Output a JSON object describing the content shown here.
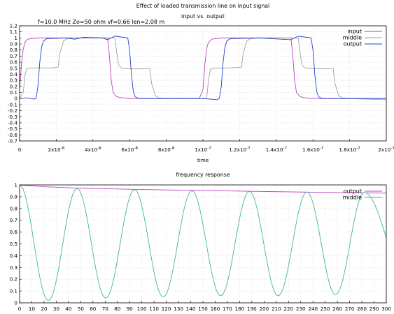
{
  "figure": {
    "title": "Effect of loaded transmission line on input signal",
    "annotation": "f=10.0 MHz   Zo=50 ohm  vf=0.66 len=2.08 m"
  },
  "chart_data": [
    {
      "type": "line",
      "title": "input vs. output",
      "xlabel": "time",
      "ylabel": "",
      "xlim": [
        0,
        2e-07
      ],
      "ylim": [
        -0.7,
        1.2
      ],
      "x_ticks": [
        {
          "v": 0,
          "label": "0"
        },
        {
          "v": 2e-08,
          "label": "2x10-8"
        },
        {
          "v": 4e-08,
          "label": "4x10-8"
        },
        {
          "v": 6e-08,
          "label": "6x10-8"
        },
        {
          "v": 8e-08,
          "label": "8x10-8"
        },
        {
          "v": 1e-07,
          "label": "1x10-7"
        },
        {
          "v": 1.2e-07,
          "label": "1.2x10-7"
        },
        {
          "v": 1.4e-07,
          "label": "1.4x10-7"
        },
        {
          "v": 1.6e-07,
          "label": "1.6x10-7"
        },
        {
          "v": 1.8e-07,
          "label": "1.8x10-7"
        },
        {
          "v": 2e-07,
          "label": "2x10-7"
        }
      ],
      "y_ticks": [
        "1.2",
        "1.1",
        "1",
        "0.9",
        "0.8",
        "0.7",
        "0.6",
        "0.5",
        "0.4",
        "0.3",
        "0.2",
        "0.1",
        "0",
        "-0.1",
        "-0.2",
        "-0.3",
        "-0.4",
        "-0.5",
        "-0.6",
        "-0.7"
      ],
      "grid": true,
      "legend_position": "top-right",
      "series": [
        {
          "name": "input",
          "color": "#c040c0",
          "points": [
            [
              0,
              0.15
            ],
            [
              1e-09,
              0.55
            ],
            [
              2e-09,
              0.82
            ],
            [
              3e-09,
              0.93
            ],
            [
              4e-09,
              0.97
            ],
            [
              6e-09,
              0.99
            ],
            [
              1e-08,
              1.0
            ],
            [
              4.8e-08,
              1.0
            ],
            [
              4.9e-08,
              0.7
            ],
            [
              5e-08,
              0.3
            ],
            [
              5.1e-08,
              0.1
            ],
            [
              5.3e-08,
              0.03
            ],
            [
              5.6e-08,
              0.01
            ],
            [
              6e-08,
              0.0
            ],
            [
              9.8e-08,
              0.0
            ],
            [
              1e-07,
              0.15
            ],
            [
              1.01e-07,
              0.55
            ],
            [
              1.02e-07,
              0.82
            ],
            [
              1.03e-07,
              0.93
            ],
            [
              1.05e-07,
              0.98
            ],
            [
              1.1e-07,
              1.0
            ],
            [
              1.48e-07,
              1.0
            ],
            [
              1.49e-07,
              0.7
            ],
            [
              1.5e-07,
              0.3
            ],
            [
              1.51e-07,
              0.1
            ],
            [
              1.53e-07,
              0.03
            ],
            [
              1.56e-07,
              0.01
            ],
            [
              1.6e-07,
              0.0
            ],
            [
              2e-07,
              0.0
            ]
          ]
        },
        {
          "name": "middle",
          "color": "#a0a0a0",
          "points": [
            [
              0,
              0.0
            ],
            [
              2e-09,
              0.1
            ],
            [
              3e-09,
              0.4
            ],
            [
              4e-09,
              0.5
            ],
            [
              6e-09,
              0.5
            ],
            [
              1e-08,
              0.51
            ],
            [
              1.6e-08,
              0.5
            ],
            [
              2.1e-08,
              0.52
            ],
            [
              2.2e-08,
              0.75
            ],
            [
              2.4e-08,
              0.95
            ],
            [
              2.6e-08,
              0.99
            ],
            [
              3e-08,
              1.0
            ],
            [
              5.2e-08,
              1.0
            ],
            [
              5.3e-08,
              0.75
            ],
            [
              5.4e-08,
              0.55
            ],
            [
              5.6e-08,
              0.5
            ],
            [
              6e-08,
              0.49
            ],
            [
              6.6e-08,
              0.49
            ],
            [
              7.1e-08,
              0.5
            ],
            [
              7.2e-08,
              0.25
            ],
            [
              7.4e-08,
              0.05
            ],
            [
              7.6e-08,
              0.01
            ],
            [
              8e-08,
              0.0
            ],
            [
              1.02e-07,
              0.0
            ],
            [
              1.03e-07,
              0.3
            ],
            [
              1.04e-07,
              0.48
            ],
            [
              1.06e-07,
              0.5
            ],
            [
              1.12e-07,
              0.5
            ],
            [
              1.21e-07,
              0.52
            ],
            [
              1.22e-07,
              0.75
            ],
            [
              1.24e-07,
              0.95
            ],
            [
              1.26e-07,
              0.99
            ],
            [
              1.3e-07,
              1.0
            ],
            [
              1.52e-07,
              1.0
            ],
            [
              1.53e-07,
              0.75
            ],
            [
              1.54e-07,
              0.55
            ],
            [
              1.56e-07,
              0.5
            ],
            [
              1.66e-07,
              0.49
            ],
            [
              1.71e-07,
              0.5
            ],
            [
              1.72e-07,
              0.25
            ],
            [
              1.74e-07,
              0.05
            ],
            [
              1.76e-07,
              0.01
            ],
            [
              1.8e-07,
              0.0
            ],
            [
              2e-07,
              -0.02
            ]
          ]
        },
        {
          "name": "output",
          "color": "#2040d0",
          "points": [
            [
              0,
              0.0
            ],
            [
              4e-09,
              0.01
            ],
            [
              8e-09,
              -0.01
            ],
            [
              9e-09,
              0.0
            ],
            [
              1e-08,
              0.2
            ],
            [
              1.1e-08,
              0.6
            ],
            [
              1.2e-08,
              0.85
            ],
            [
              1.3e-08,
              0.95
            ],
            [
              1.5e-08,
              0.99
            ],
            [
              2.5e-08,
              1.0
            ],
            [
              3e-08,
              0.98
            ],
            [
              3.5e-08,
              1.01
            ],
            [
              4.5e-08,
              1.0
            ],
            [
              4.8e-08,
              0.97
            ],
            [
              5e-08,
              1.0
            ],
            [
              5.2e-08,
              1.03
            ],
            [
              5.9e-08,
              1.0
            ],
            [
              6e-08,
              0.8
            ],
            [
              6.1e-08,
              0.4
            ],
            [
              6.2e-08,
              0.12
            ],
            [
              6.3e-08,
              0.03
            ],
            [
              6.5e-08,
              0.0
            ],
            [
              7.5e-08,
              0.0
            ],
            [
              1e-07,
              0.0
            ],
            [
              1.08e-07,
              -0.02
            ],
            [
              1.09e-07,
              0.01
            ],
            [
              1.1e-07,
              0.2
            ],
            [
              1.11e-07,
              0.6
            ],
            [
              1.12e-07,
              0.85
            ],
            [
              1.13e-07,
              0.95
            ],
            [
              1.15e-07,
              0.99
            ],
            [
              1.3e-07,
              1.0
            ],
            [
              1.48e-07,
              0.97
            ],
            [
              1.5e-07,
              1.0
            ],
            [
              1.52e-07,
              1.03
            ],
            [
              1.59e-07,
              1.0
            ],
            [
              1.6e-07,
              0.8
            ],
            [
              1.61e-07,
              0.4
            ],
            [
              1.62e-07,
              0.12
            ],
            [
              1.63e-07,
              0.03
            ],
            [
              1.65e-07,
              0.0
            ],
            [
              2e-07,
              0.0
            ]
          ]
        }
      ]
    },
    {
      "type": "line",
      "title": "frequency response",
      "xlabel": "",
      "ylabel": "",
      "xlim": [
        0,
        300
      ],
      "ylim": [
        0,
        1
      ],
      "x_ticks": [
        "0",
        "10",
        "20",
        "30",
        "40",
        "50",
        "60",
        "70",
        "80",
        "90",
        "100",
        "110",
        "120",
        "130",
        "140",
        "150",
        "160",
        "170",
        "180",
        "190",
        "200",
        "210",
        "220",
        "230",
        "240",
        "250",
        "260",
        "270",
        "280",
        "290",
        "300"
      ],
      "y_ticks": [
        "1",
        "0.9",
        "0.8",
        "0.7",
        "0.6",
        "0.5",
        "0.4",
        "0.3",
        "0.2",
        "0.1",
        "0"
      ],
      "grid": true,
      "legend_position": "top-right",
      "series": [
        {
          "name": "output",
          "color": "#c040c0",
          "points": [
            [
              0,
              1.0
            ],
            [
              20,
              0.985
            ],
            [
              50,
              0.972
            ],
            [
              100,
              0.961
            ],
            [
              150,
              0.952
            ],
            [
              200,
              0.944
            ],
            [
              250,
              0.937
            ],
            [
              300,
              0.93
            ]
          ]
        },
        {
          "name": "middle",
          "color": "#3cb89a",
          "minima": [
            [
              0,
              1.0
            ],
            [
              23.5,
              0.02
            ],
            [
              70.5,
              0.04
            ],
            [
              117.5,
              0.05
            ],
            [
              164.5,
              0.06
            ],
            [
              211.5,
              0.06
            ],
            [
              258.5,
              0.07
            ]
          ],
          "maxima": [
            [
              47,
              0.97
            ],
            [
              94,
              0.96
            ],
            [
              141,
              0.95
            ],
            [
              188,
              0.945
            ],
            [
              235,
              0.94
            ],
            [
              282,
              0.935
            ]
          ],
          "end_value": [
            300,
            0.55
          ]
        }
      ]
    }
  ]
}
